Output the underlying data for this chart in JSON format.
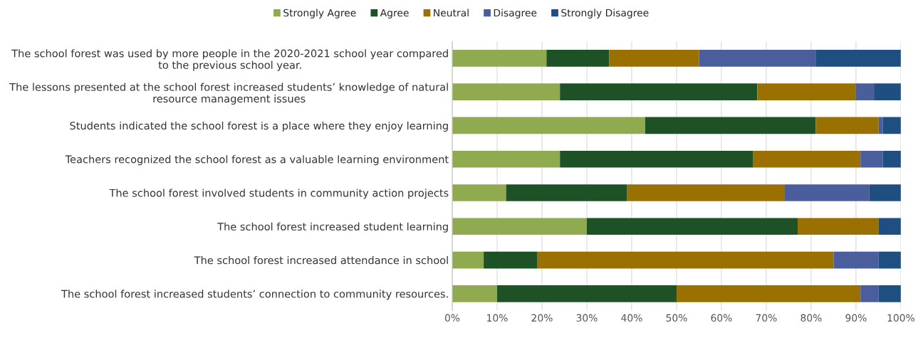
{
  "chart_data": {
    "type": "bar",
    "orientation": "horizontal",
    "stacked": true,
    "categories": [
      "The school forest was used by more people in the 2020-2021 school year compared\nto the previous school year.",
      "The lessons presented at the school forest increased students’ knowledge of natural\nresource management issues",
      "Students indicated the school forest is a place where they enjoy learning",
      "Teachers recognized the school forest as a valuable learning environment",
      "The school forest involved students in community action projects",
      "The school forest increased student learning",
      "The school forest increased attendance in school",
      "The school forest increased students’ connection to community resources."
    ],
    "series": [
      {
        "name": "Strongly Agree",
        "color": "#8faa4f",
        "values": [
          21,
          24,
          43,
          24,
          12,
          30,
          7,
          10
        ]
      },
      {
        "name": "Agree",
        "color": "#1e5226",
        "values": [
          14,
          44,
          38,
          43,
          27,
          47,
          12,
          40
        ]
      },
      {
        "name": "Neutral",
        "color": "#9a7100",
        "values": [
          20,
          22,
          14,
          24,
          35,
          18,
          66,
          41
        ]
      },
      {
        "name": "Disagree",
        "color": "#4a5e9e",
        "values": [
          26,
          4,
          1,
          5,
          19,
          0,
          10,
          4
        ]
      },
      {
        "name": "Strongly Disagree",
        "color": "#1f4e80",
        "values": [
          19,
          6,
          4,
          4,
          7,
          5,
          5,
          5
        ]
      }
    ],
    "xlim": [
      0,
      100
    ],
    "xticks": [
      {
        "value": 0,
        "label": "0%"
      },
      {
        "value": 10,
        "label": "10%"
      },
      {
        "value": 20,
        "label": "20%"
      },
      {
        "value": 30,
        "label": "30%"
      },
      {
        "value": 40,
        "label": "40%"
      },
      {
        "value": 50,
        "label": "50%"
      },
      {
        "value": 60,
        "label": "60%"
      },
      {
        "value": 70,
        "label": "70%"
      },
      {
        "value": 80,
        "label": "80%"
      },
      {
        "value": 90,
        "label": "90%"
      },
      {
        "value": 100,
        "label": "100%"
      }
    ],
    "grid": "x",
    "legend": "top"
  }
}
